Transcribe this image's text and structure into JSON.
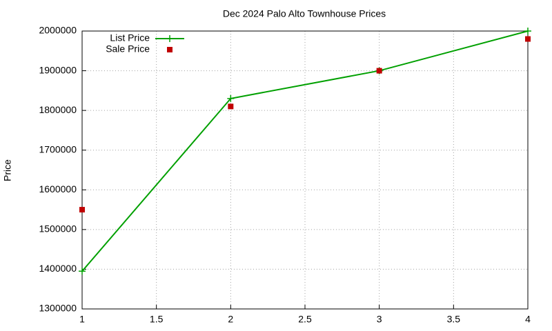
{
  "chart_data": {
    "type": "line",
    "title": "Dec 2024 Palo Alto Townhouse Prices",
    "y_label": "Price",
    "x": [
      1,
      2,
      3,
      4
    ],
    "series": [
      {
        "name": "List Price",
        "color": "#00a000",
        "style": "linespoints",
        "values": [
          1395000,
          1830000,
          1900000,
          2000000
        ]
      },
      {
        "name": "Sale Price",
        "color": "#c00000",
        "style": "points",
        "values": [
          1550000,
          1810000,
          1900000,
          1980000
        ]
      }
    ],
    "xlim": [
      1,
      4
    ],
    "xticks": [
      1,
      1.5,
      2,
      2.5,
      3,
      3.5,
      4
    ],
    "ylim": [
      1300000,
      2000000
    ],
    "yticks": [
      1300000,
      1400000,
      1500000,
      1600000,
      1700000,
      1800000,
      1900000,
      2000000
    ],
    "grid": true,
    "legend": "top-left"
  }
}
